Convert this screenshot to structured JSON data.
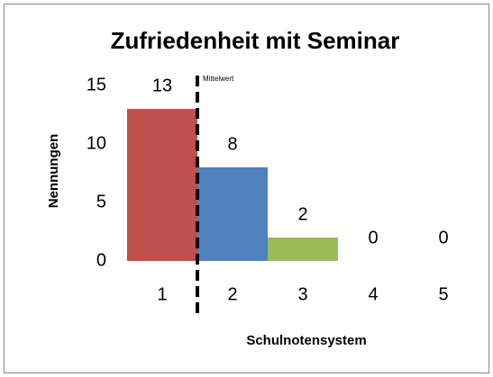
{
  "chart_data": {
    "type": "bar",
    "title": "Zufriedenheit mit Seminar",
    "x_label": "Schulnotensystem",
    "y_label": "Nennungen",
    "categories": [
      "1",
      "2",
      "3",
      "4",
      "5"
    ],
    "values": [
      13,
      8,
      2,
      0,
      0
    ],
    "colors": [
      "#c0504d",
      "#4f81bd",
      "#9bbb59",
      "#8064a2",
      "#4bacc6"
    ],
    "ylim": [
      0,
      15
    ],
    "yticks": [
      0,
      5,
      10,
      15
    ],
    "grid": false,
    "mean": 1.5,
    "mean_label": "Mittelwert"
  }
}
